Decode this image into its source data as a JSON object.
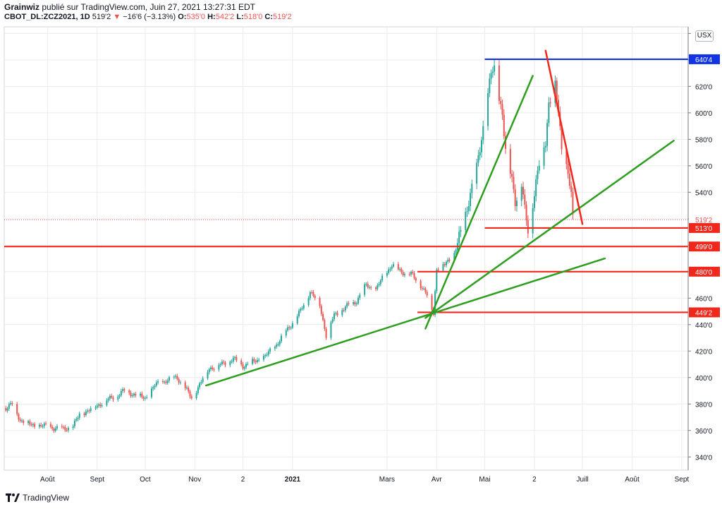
{
  "header": {
    "author": "Grainwiz",
    "published_text": "publié sur TradingView.com, Juin 27, 2021 13:27:31 EDT",
    "symbol": "CBOT_DL:ZCZ2021, 1D",
    "last": "519'2",
    "change": "−16'6 (−3.13%)",
    "o_label": "O:",
    "o_value": "535'0",
    "h_label": "H:",
    "h_value": "542'2",
    "l_label": "L:",
    "l_value": "518'0",
    "c_label": "C:",
    "c_value": "519'2"
  },
  "currency_button": "USX",
  "footer": {
    "brand": "TradingView"
  },
  "colors": {
    "up": "#26a69a",
    "down": "#ef5350",
    "green_line": "#2e9e1f",
    "blue_line": "#1034e6",
    "red_line": "#f0281c"
  },
  "chart_data": {
    "type": "candlestick",
    "x_range": [
      "2021-07-05",
      "2021-09-05"
    ],
    "ylim": [
      330,
      665
    ],
    "y_ticks": [
      340,
      360,
      380,
      400,
      420,
      440,
      460,
      480,
      500,
      520,
      540,
      560,
      580,
      600,
      620,
      640,
      660
    ],
    "y_tick_labels": [
      "340'0",
      "360'0",
      "380'0",
      "400'0",
      "420'0",
      "440'0",
      "460'0",
      "480'0",
      "500'0",
      "520'0",
      "540'0",
      "560'0",
      "580'0",
      "600'0",
      "620'0",
      "640'0",
      "660'0"
    ],
    "x_ticks": [
      {
        "label": "Août",
        "date": "2020-08-01"
      },
      {
        "label": "Sept",
        "date": "2020-09-01"
      },
      {
        "label": "Oct",
        "date": "2020-10-01"
      },
      {
        "label": "Nov",
        "date": "2020-11-01"
      },
      {
        "label": "2",
        "date": "2020-12-01"
      },
      {
        "label": "2021",
        "date": "2021-01-01"
      },
      {
        "label": "Mars",
        "date": "2021-03-01"
      },
      {
        "label": "Avr",
        "date": "2021-04-01"
      },
      {
        "label": "Mai",
        "date": "2021-05-01"
      },
      {
        "label": "2",
        "date": "2021-06-01"
      },
      {
        "label": "Juill",
        "date": "2021-07-01"
      },
      {
        "label": "Août",
        "date": "2021-08-01"
      },
      {
        "label": "Sept",
        "date": "2021-09-01"
      }
    ],
    "x_domain": [
      "2020-07-05",
      "2021-09-05"
    ],
    "price_path": [
      [
        "2020-07-06",
        377
      ],
      [
        "2020-07-10",
        380
      ],
      [
        "2020-07-15",
        368
      ],
      [
        "2020-07-22",
        364
      ],
      [
        "2020-08-01",
        363
      ],
      [
        "2020-08-10",
        361
      ],
      [
        "2020-08-17",
        363
      ],
      [
        "2020-08-21",
        372
      ],
      [
        "2020-08-28",
        376
      ],
      [
        "2020-09-04",
        381
      ],
      [
        "2020-09-11",
        385
      ],
      [
        "2020-09-18",
        390
      ],
      [
        "2020-09-25",
        387
      ],
      [
        "2020-10-01",
        384
      ],
      [
        "2020-10-07",
        394
      ],
      [
        "2020-10-14",
        398
      ],
      [
        "2020-10-21",
        400
      ],
      [
        "2020-10-26",
        392
      ],
      [
        "2020-10-30",
        384
      ],
      [
        "2020-11-04",
        395
      ],
      [
        "2020-11-10",
        407
      ],
      [
        "2020-11-18",
        410
      ],
      [
        "2020-11-25",
        414
      ],
      [
        "2020-12-01",
        409
      ],
      [
        "2020-12-08",
        412
      ],
      [
        "2020-12-15",
        416
      ],
      [
        "2020-12-22",
        425
      ],
      [
        "2020-12-31",
        440
      ],
      [
        "2021-01-06",
        450
      ],
      [
        "2021-01-12",
        465
      ],
      [
        "2021-01-18",
        455
      ],
      [
        "2021-01-22",
        432
      ],
      [
        "2021-01-27",
        447
      ],
      [
        "2021-02-03",
        453
      ],
      [
        "2021-02-10",
        458
      ],
      [
        "2021-02-16",
        470
      ],
      [
        "2021-02-22",
        466
      ],
      [
        "2021-02-26",
        475
      ],
      [
        "2021-03-04",
        485
      ],
      [
        "2021-03-10",
        480
      ],
      [
        "2021-03-16",
        478
      ],
      [
        "2021-03-22",
        470
      ],
      [
        "2021-03-26",
        462
      ],
      [
        "2021-03-30",
        449
      ],
      [
        "2021-04-01",
        482
      ],
      [
        "2021-04-06",
        485
      ],
      [
        "2021-04-12",
        494
      ],
      [
        "2021-04-16",
        508
      ],
      [
        "2021-04-21",
        535
      ],
      [
        "2021-04-26",
        557
      ],
      [
        "2021-04-30",
        590
      ],
      [
        "2021-05-05",
        629
      ],
      [
        "2021-05-07",
        632
      ],
      [
        "2021-05-12",
        600
      ],
      [
        "2021-05-14",
        570
      ],
      [
        "2021-05-18",
        550
      ],
      [
        "2021-05-20",
        535
      ],
      [
        "2021-05-24",
        545
      ],
      [
        "2021-05-26",
        525
      ],
      [
        "2021-05-28",
        512
      ],
      [
        "2021-06-01",
        540
      ],
      [
        "2021-06-04",
        560
      ],
      [
        "2021-06-08",
        580
      ],
      [
        "2021-06-10",
        608
      ],
      [
        "2021-06-14",
        620
      ],
      [
        "2021-06-16",
        600
      ],
      [
        "2021-06-18",
        575
      ],
      [
        "2021-06-22",
        555
      ],
      [
        "2021-06-24",
        535
      ],
      [
        "2021-06-25",
        519
      ]
    ],
    "last_price_label": "519'2",
    "horizontal_levels": [
      {
        "value": 640.5,
        "label": "640'4",
        "color": "#1034e6",
        "start": "2021-05-01",
        "end": "2021-07-31",
        "extend_right": true
      },
      {
        "value": 513,
        "label": "513'0",
        "color": "#f0281c",
        "start": "2021-05-01",
        "extend_right": true
      },
      {
        "value": 499,
        "label": "499'0",
        "color": "#f0281c",
        "start": "2020-07-05",
        "extend_right": true
      },
      {
        "value": 480,
        "label": "480'0",
        "color": "#f0281c",
        "start": "2021-03-20",
        "extend_right": true
      },
      {
        "value": 449.25,
        "label": "449'2",
        "color": "#f0281c",
        "start": "2021-03-20",
        "extend_right": true
      }
    ],
    "trend_lines": [
      {
        "color": "#2e9e1f",
        "from": [
          "2020-11-08",
          394
        ],
        "to": [
          "2021-07-15",
          490
        ]
      },
      {
        "color": "#2e9e1f",
        "from": [
          "2021-03-25",
          437
        ],
        "to": [
          "2021-05-31",
          628
        ]
      },
      {
        "color": "#2e9e1f",
        "from": [
          "2021-03-25",
          445
        ],
        "to": [
          "2021-08-27",
          579
        ]
      },
      {
        "color": "#f0281c",
        "from": [
          "2021-06-08",
          647
        ],
        "to": [
          "2021-07-01",
          516
        ]
      }
    ]
  }
}
